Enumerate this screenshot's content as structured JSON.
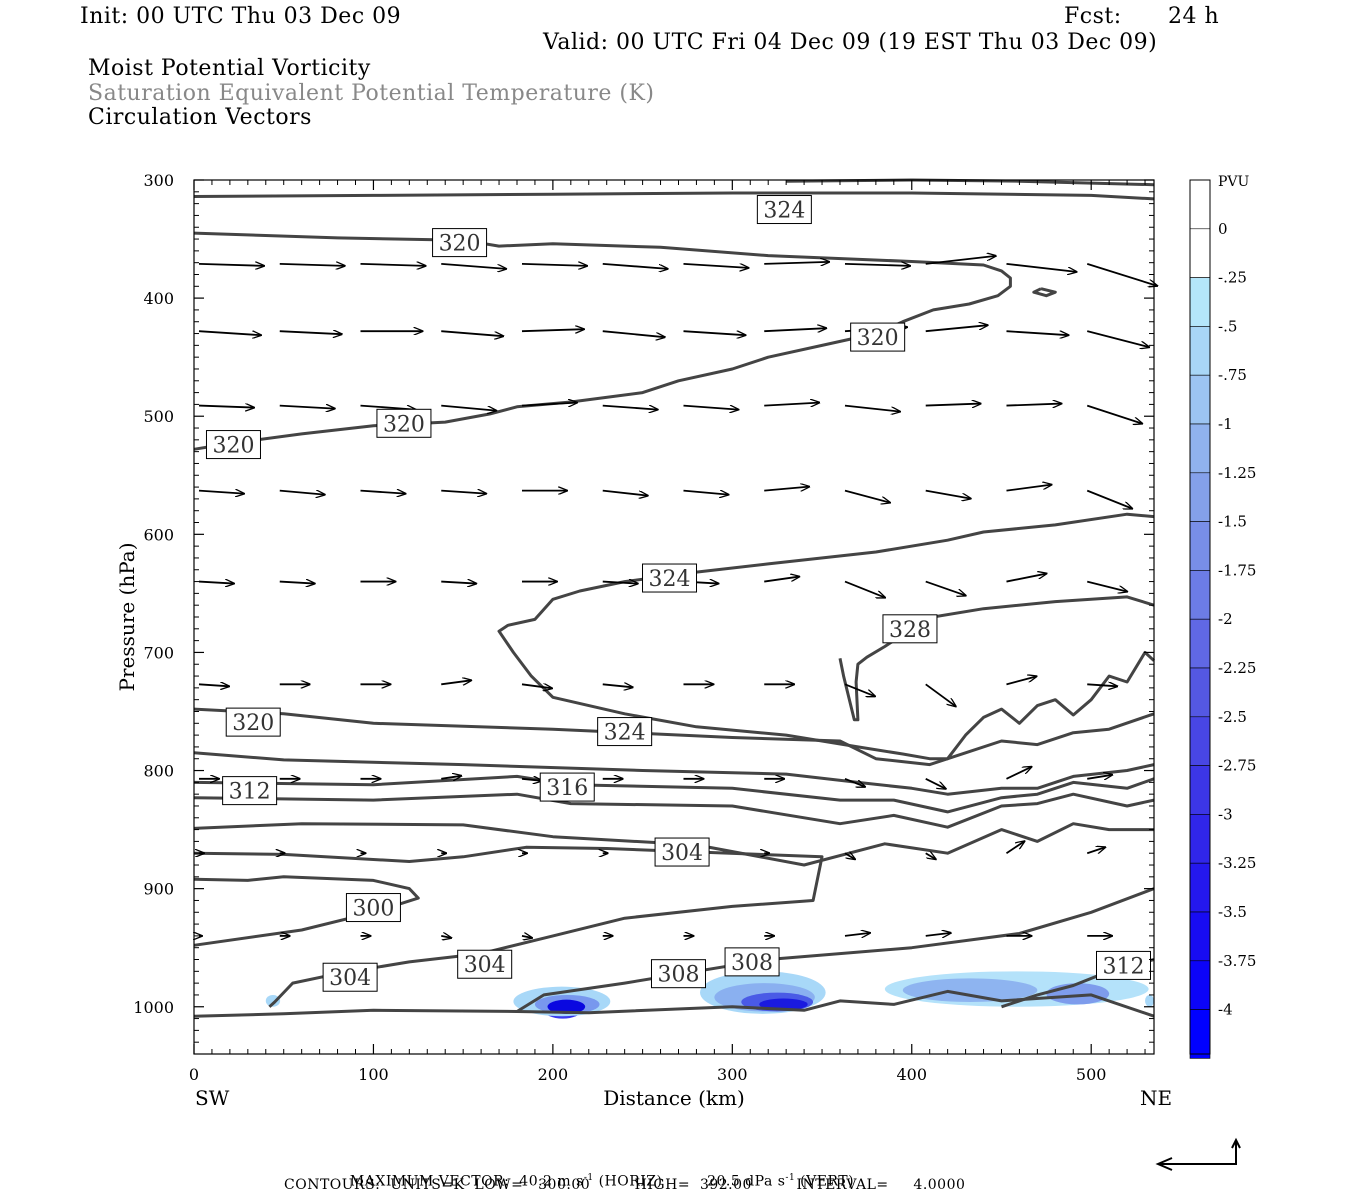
{
  "header": {
    "init": "Init: 00 UTC Thu 03 Dec 09",
    "fcst_label": "Fcst:",
    "fcst_value": "24 h",
    "valid": "Valid: 00 UTC Fri 04 Dec 09 (19 EST Thu 03 Dec 09)",
    "fields": [
      "Moist Potential Vorticity",
      "Saturation Equivalent Potential Temperature (K)",
      "Circulation Vectors"
    ]
  },
  "chart_data": {
    "type": "contour",
    "xlabel": "Distance (km)",
    "ylabel": "Pressure (hPa)",
    "xlim": [
      0,
      535
    ],
    "ylim": [
      1040,
      300
    ],
    "x_ticks": [
      0,
      100,
      200,
      300,
      400,
      500
    ],
    "y_ticks": [
      300,
      400,
      500,
      600,
      700,
      800,
      900,
      1000
    ],
    "x_end_labels": {
      "left": "SW",
      "right": "NE"
    },
    "colorbar": {
      "label": "PVU",
      "ticks": [
        "0",
        "-.25",
        "-.5",
        "-.75",
        "-1",
        "-1.25",
        "-1.5",
        "-1.75",
        "-2",
        "-2.25",
        "-2.5",
        "-2.75",
        "-3",
        "-3.25",
        "-3.5",
        "-3.75",
        "-4"
      ],
      "colors": [
        "#ffffff",
        "#ffffff",
        "#b4e6fa",
        "#a8d6f6",
        "#9cc4f2",
        "#90b2ee",
        "#84a0ea",
        "#788ee8",
        "#6c7ce6",
        "#6068e4",
        "#5458e2",
        "#4846e4",
        "#3c36e6",
        "#3026ea",
        "#2418ee",
        "#180cf2",
        "#0c04f8",
        "#0000ff"
      ]
    },
    "contour_labels": [
      {
        "text": "324",
        "x": 329,
        "p": 325
      },
      {
        "text": "320",
        "x": 148,
        "p": 353
      },
      {
        "text": "320",
        "x": 381,
        "p": 433
      },
      {
        "text": "320",
        "x": 117,
        "p": 506
      },
      {
        "text": "320",
        "x": 22,
        "p": 524
      },
      {
        "text": "324",
        "x": 265,
        "p": 637
      },
      {
        "text": "328",
        "x": 399,
        "p": 680
      },
      {
        "text": "320",
        "x": 33,
        "p": 759
      },
      {
        "text": "324",
        "x": 240,
        "p": 767
      },
      {
        "text": "312",
        "x": 31,
        "p": 817
      },
      {
        "text": "316",
        "x": 208,
        "p": 814
      },
      {
        "text": "304",
        "x": 272,
        "p": 869
      },
      {
        "text": "300",
        "x": 100,
        "p": 916
      },
      {
        "text": "304",
        "x": 162,
        "p": 964
      },
      {
        "text": "304",
        "x": 87,
        "p": 975
      },
      {
        "text": "308",
        "x": 270,
        "p": 972
      },
      {
        "text": "308",
        "x": 311,
        "p": 962
      },
      {
        "text": "312",
        "x": 518,
        "p": 965
      }
    ],
    "footer": {
      "max_vector_label": "MAXIMUM VECTOR:",
      "horiz": "40.2 m s",
      "horiz_unit": "(HORIZ)",
      "vert": "20.5 dPa s",
      "vert_unit": "(VERT)",
      "exp": "-1",
      "contours": "CONTOURS:  UNITS=K  LOW=   300.00         HIGH=  392.00         INTERVAL=     4.0000"
    }
  }
}
